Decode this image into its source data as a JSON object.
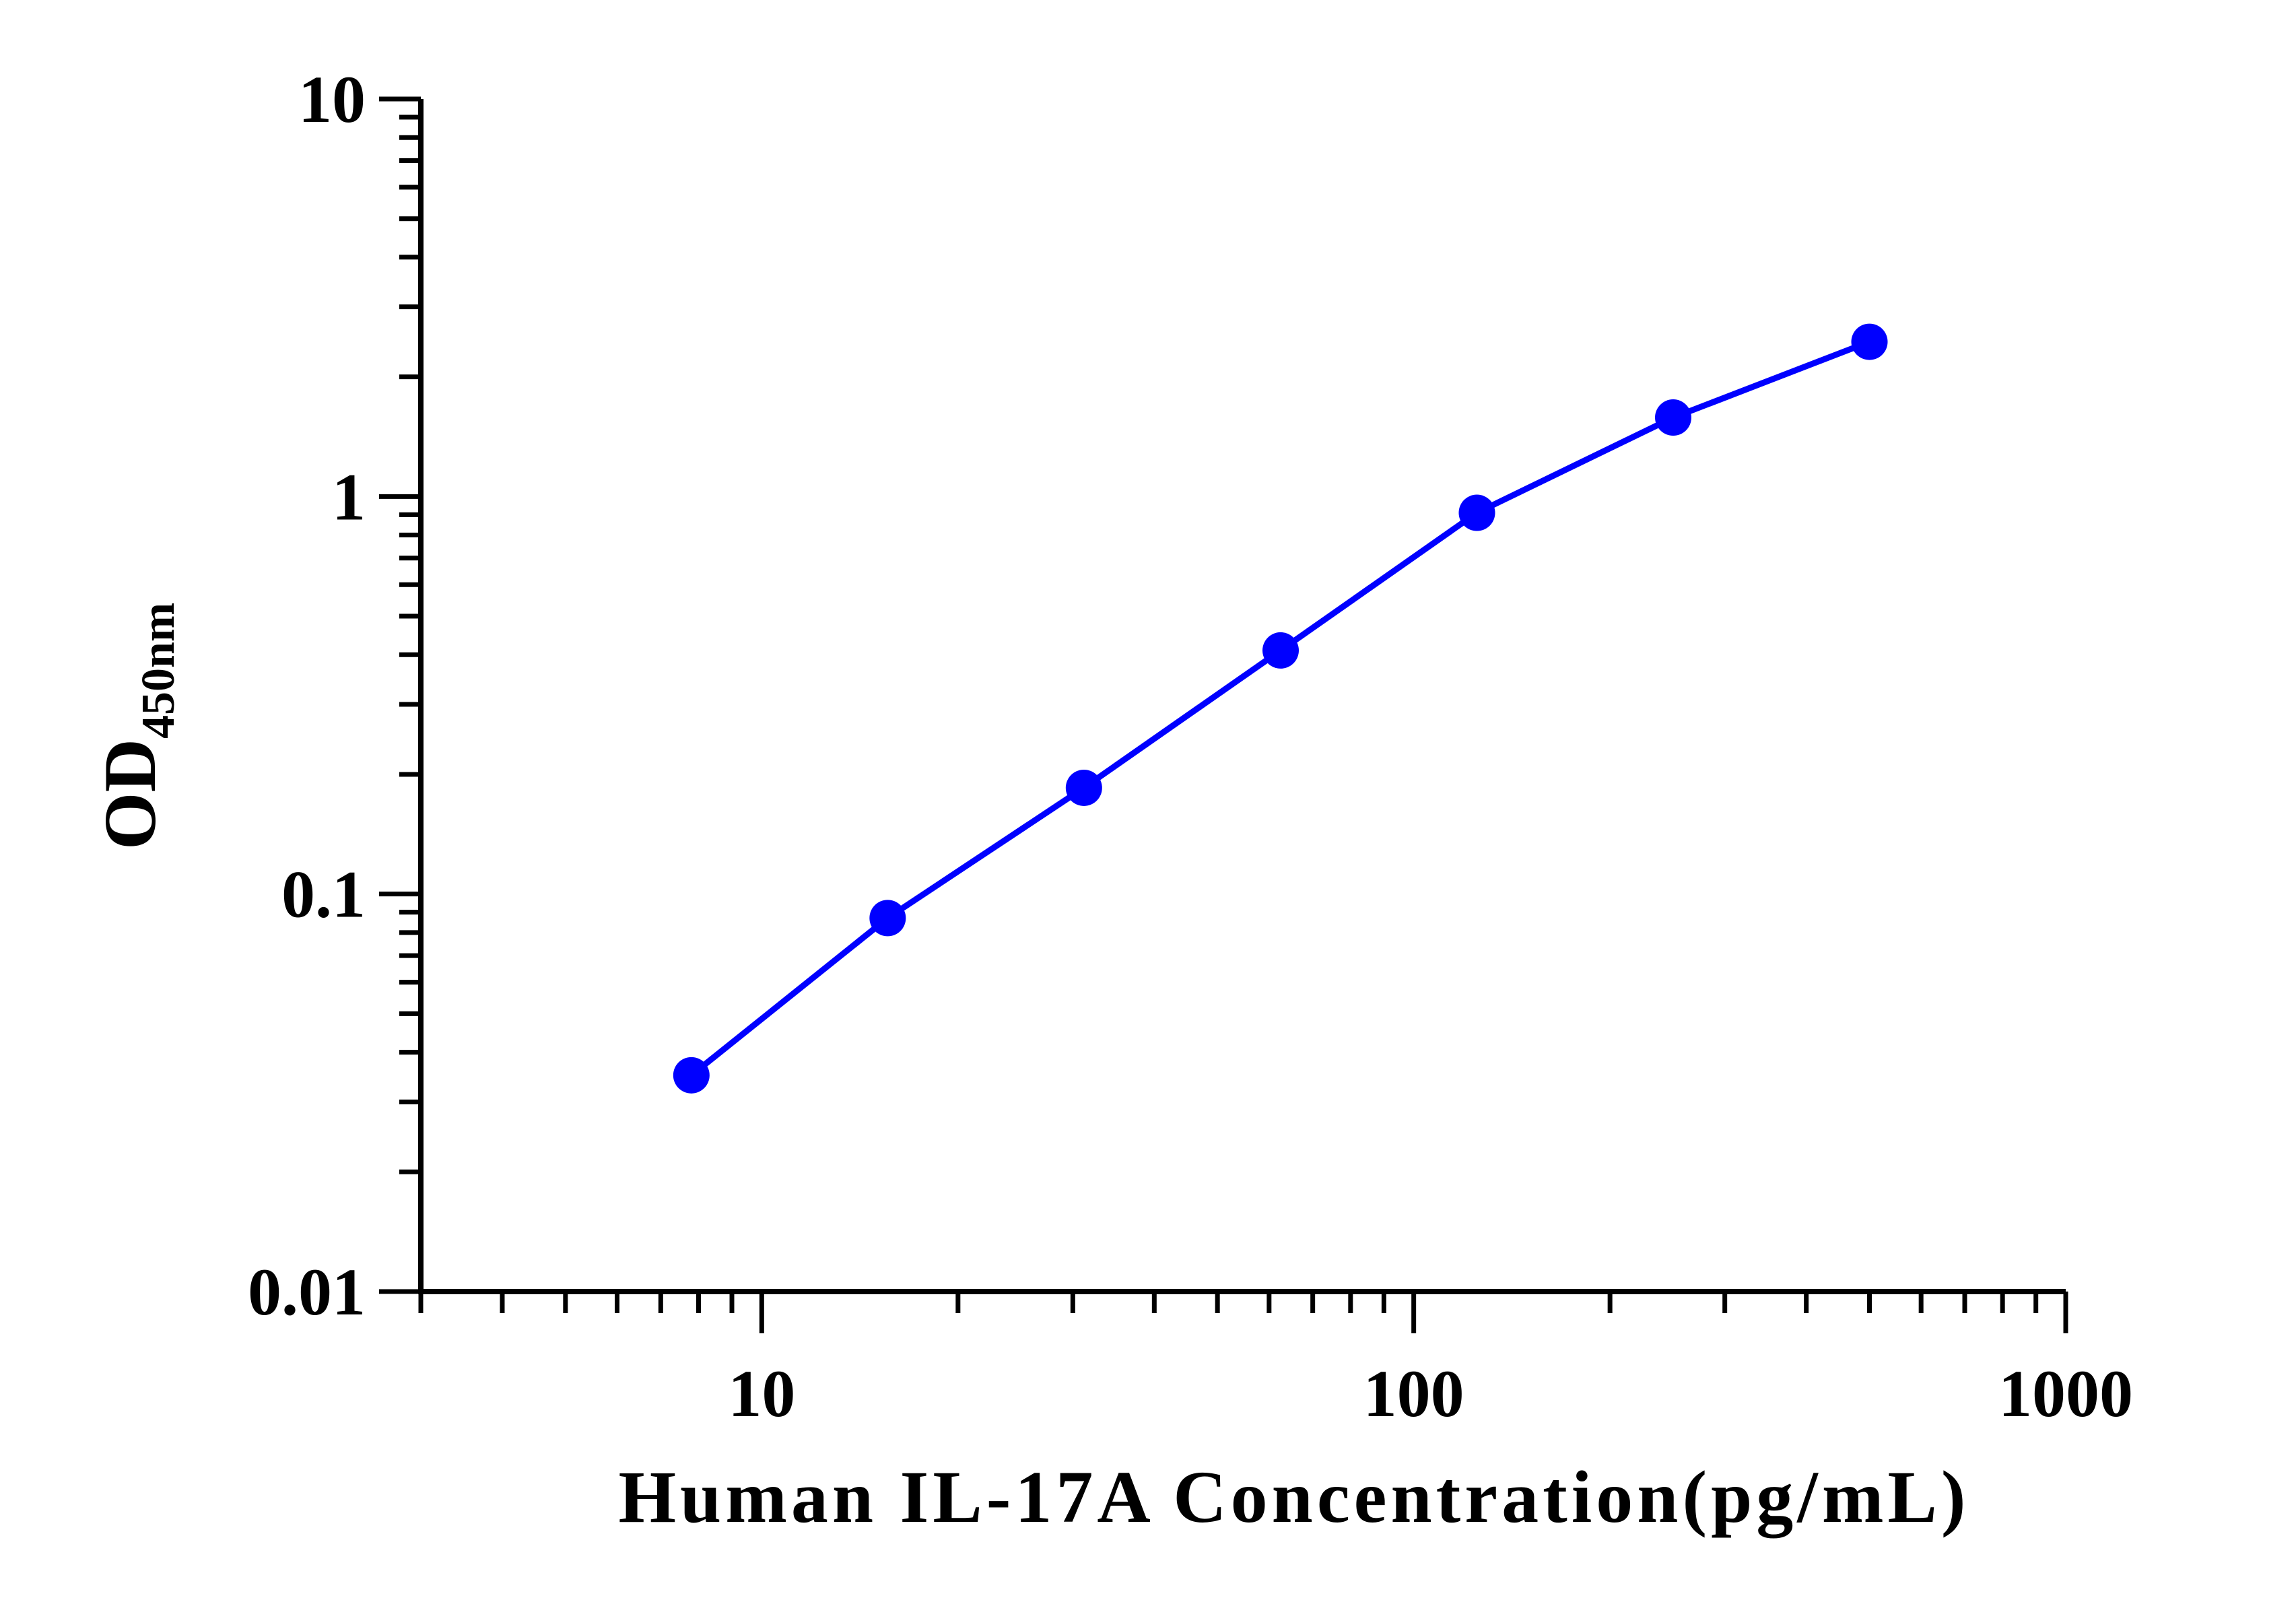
{
  "chart_data": {
    "type": "line",
    "title": "",
    "xlabel": "Human IL-17A Concentration(pg/mL)",
    "ylabel": "OD",
    "ylabel_subscript": "450nm",
    "xscale": "log",
    "yscale": "log",
    "xlim": [
      3,
      1000
    ],
    "ylim": [
      0.01,
      10
    ],
    "xticks": [
      {
        "value": 10,
        "label": "10"
      },
      {
        "value": 100,
        "label": "100"
      },
      {
        "value": 1000,
        "label": "1000"
      }
    ],
    "yticks": [
      {
        "value": 0.01,
        "label": "0.01"
      },
      {
        "value": 0.1,
        "label": "0.1"
      },
      {
        "value": 1,
        "label": "1"
      },
      {
        "value": 10,
        "label": "10"
      }
    ],
    "grid": false,
    "legend": "none",
    "series": [
      {
        "color": "#0000ff",
        "x": [
          7.8,
          15.6,
          31.2,
          62.5,
          125,
          250,
          500
        ],
        "y": [
          0.035,
          0.087,
          0.185,
          0.41,
          0.91,
          1.58,
          2.45
        ]
      }
    ]
  }
}
